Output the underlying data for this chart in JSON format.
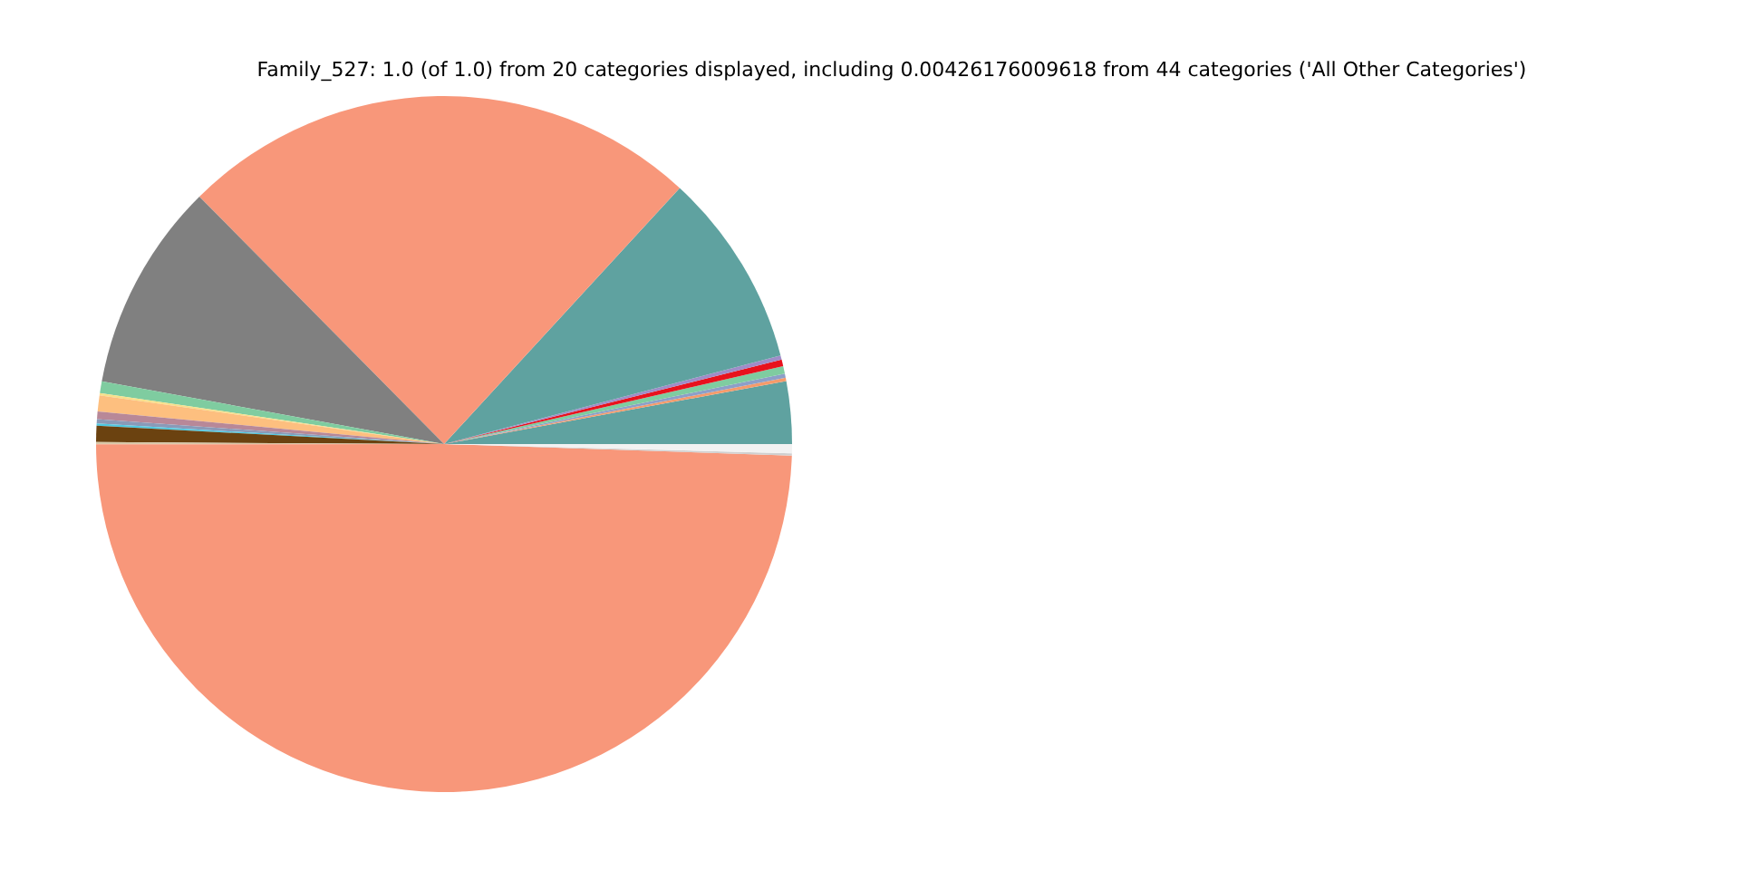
{
  "chart_data": {
    "type": "pie",
    "title": "Family_527: 1.0 (of 1.0) from 20 categories displayed, including 0.00426176009618 from 44 categories ('All Other Categories')",
    "categories": [
      null,
      null,
      null,
      null,
      null,
      null,
      null,
      null,
      null,
      null,
      null,
      null,
      null,
      null,
      null,
      null,
      null,
      null,
      null,
      null
    ],
    "values": [
      2.9,
      0.15,
      0.2,
      0.35,
      0.3,
      0.2,
      9.06,
      24.25,
      9.7,
      0.55,
      0.1,
      0.75,
      0.35,
      0.2,
      0.1,
      0.75,
      0.1,
      49.464,
      0.1,
      0.426
    ],
    "colors": [
      "#5fa2a0",
      "#f59b6b",
      "#8d9fc8",
      "#7fcca0",
      "#e8121d",
      "#a08cc8",
      "#5fa2a0",
      "#f8977a",
      "#808080",
      "#7fcca0",
      "#f7e08a",
      "#fdbf7f",
      "#b88898",
      "#8a9ab8",
      "#4fc8e0",
      "#6b4210",
      "#d8c8a8",
      "#f8977a",
      "#d0d0d0",
      "#f2f2f2"
    ],
    "legend": false
  }
}
